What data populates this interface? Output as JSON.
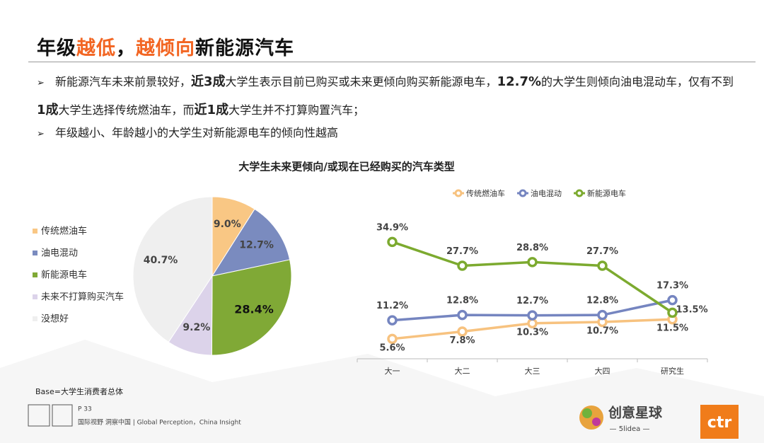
{
  "title": [
    {
      "text": "年级"
    },
    {
      "text": "越低",
      "color": "#f26522"
    },
    {
      "text": "，"
    },
    {
      "text": "越倾向",
      "color": "#f26522"
    },
    {
      "text": "新能源汽车"
    }
  ],
  "bullets": [
    [
      {
        "text": "新能源汽车未来前景较好，"
      },
      {
        "text": "近3成",
        "bold": true
      },
      {
        "text": "大学生表示目前已购买或未来更倾向购买新能源电车，"
      },
      {
        "text": "12.7%",
        "bold": true
      },
      {
        "text": "的大学生则倾向油电混动车，仅有不到"
      },
      {
        "text": "1成",
        "bold": true
      },
      {
        "text": "大学生选择传统燃油车，而"
      },
      {
        "text": "近1成",
        "bold": true
      },
      {
        "text": "大学生并不打算购置汽车；"
      }
    ],
    [
      {
        "text": "年级越小、年龄越小的大学生对新能源电车的倾向性越高"
      }
    ]
  ],
  "section_title": "大学生未来更倾向/或现在已经购买的汽车类型",
  "chart_data": [
    {
      "type": "pie",
      "categories": [
        "传统燃油车",
        "油电混动",
        "新能源电车",
        "未来不打算购买汽车",
        "没想好"
      ],
      "values": [
        9.0,
        12.7,
        28.4,
        9.2,
        40.7
      ],
      "value_labels": [
        "9.0%",
        "12.7%",
        "28.4%",
        "9.2%",
        "40.7%"
      ],
      "colors": [
        "#f9c784",
        "#7a8bbf",
        "#80a936",
        "#dcd3ea",
        "#efefef"
      ],
      "legend": "left"
    },
    {
      "type": "line",
      "categories": [
        "大一",
        "大二",
        "大三",
        "大四",
        "研究生"
      ],
      "ylim": [
        0,
        40
      ],
      "legend": "top",
      "series": [
        {
          "name": "传统燃油车",
          "color": "#f7c27f",
          "values": [
            5.6,
            7.8,
            10.3,
            10.7,
            11.5
          ],
          "value_labels": [
            "5.6%",
            "7.8%",
            "10.3%",
            "10.7%",
            "11.5%"
          ]
        },
        {
          "name": "油电混动",
          "color": "#7585c0",
          "values": [
            11.2,
            12.8,
            12.7,
            12.8,
            17.3
          ],
          "value_labels": [
            "11.2%",
            "12.8%",
            "12.7%",
            "12.8%",
            "17.3%"
          ]
        },
        {
          "name": "新能源电车",
          "color": "#7caa2f",
          "values": [
            34.9,
            27.7,
            28.8,
            27.7,
            13.5
          ],
          "value_labels": [
            "34.9%",
            "27.7%",
            "28.8%",
            "27.7%",
            "13.5%"
          ]
        }
      ]
    }
  ],
  "footer": {
    "base": "Base=大学生消费者总体",
    "page": "P 33",
    "slogan": "国际视野 洞察中国 | Global Perception，China Insight",
    "logo": "创意星球",
    "logo_sub": "— 5lidea —",
    "brand": "ctr"
  }
}
